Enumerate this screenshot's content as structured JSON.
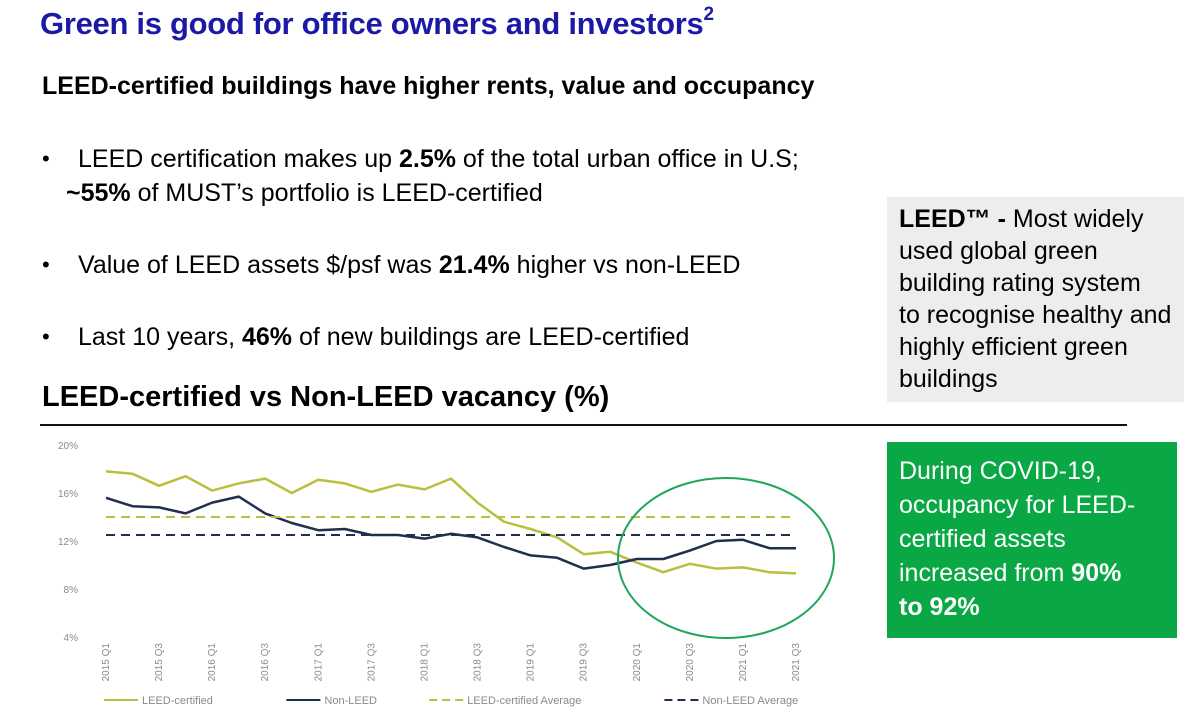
{
  "header": {
    "title": "Green is good for office owners and investors",
    "title_sup": "2",
    "subtitle": "LEED-certified buildings have higher rents, value and occupancy"
  },
  "bullets": [
    {
      "marker": "•",
      "pre": "LEED certification makes up ",
      "bold": "2.5%",
      "post": " of the total urban office in U.S;"
    },
    {
      "pre": "",
      "bold": "~55%",
      "post": " of MUST’s portfolio is LEED-certified"
    },
    {
      "marker": "•",
      "pre": "Value of LEED assets $/psf was ",
      "bold": "21.4%",
      "post": " higher vs non-LEED"
    },
    {
      "marker": "•",
      "pre": "Last 10 years, ",
      "bold": "46%",
      "post": " of new buildings are LEED-certified"
    }
  ],
  "leed_box": {
    "bold": "LEED™ -",
    "lines": [
      " Most widely",
      "used global green",
      "building rating system",
      "to recognise healthy and",
      "highly efficient green",
      "buildings"
    ]
  },
  "chart_heading": "LEED-certified vs Non-LEED vacancy (%)",
  "callout": {
    "lines": [
      "During COVID-19,",
      "occupancy for LEED-",
      "certified assets",
      "increased from "
    ],
    "bold1": "90%",
    "bold2": "to 92%"
  },
  "colors": {
    "title": "#1a1aa6",
    "leed": "#b9bf3e",
    "non_leed": "#1f2f4d",
    "callout_bg": "#0aa845",
    "highlight_circle": "#21a55a"
  },
  "chart_data": {
    "type": "line",
    "ylim": [
      4,
      20
    ],
    "yticks": [
      "4%",
      "8%",
      "12%",
      "16%",
      "20%"
    ],
    "ytick_values": [
      4,
      8,
      12,
      16,
      20
    ],
    "x": [
      "2015 Q1",
      "2015 Q2",
      "2015 Q3",
      "2015 Q4",
      "2016 Q1",
      "2016 Q2",
      "2016 Q3",
      "2016 Q4",
      "2017 Q1",
      "2017 Q2",
      "2017 Q3",
      "2017 Q4",
      "2018 Q1",
      "2018 Q2",
      "2018 Q3",
      "2018 Q4",
      "2019 Q1",
      "2019 Q2",
      "2019 Q3",
      "2019 Q4",
      "2020 Q1",
      "2020 Q2",
      "2020 Q3",
      "2020 Q4",
      "2021 Q1",
      "2021 Q2",
      "2021 Q3"
    ],
    "xtick_labels": [
      "2015 Q1",
      "2015 Q3",
      "2016 Q1",
      "2016 Q3",
      "2017 Q1",
      "2017 Q3",
      "2018 Q1",
      "2018 Q3",
      "2019 Q1",
      "2019 Q3",
      "2020 Q1",
      "2020 Q3",
      "2021 Q1",
      "2021 Q3"
    ],
    "series": [
      {
        "name": "LEED-certified",
        "style": "solid",
        "color": "#b9bf3e",
        "values": [
          17.8,
          17.6,
          16.6,
          17.4,
          16.2,
          16.8,
          17.2,
          16.0,
          17.1,
          16.8,
          16.1,
          16.7,
          16.3,
          17.2,
          15.2,
          13.6,
          13.0,
          12.3,
          10.9,
          11.1,
          10.2,
          9.4,
          10.1,
          9.7,
          9.8,
          9.4,
          9.3
        ]
      },
      {
        "name": "Non-LEED",
        "style": "solid",
        "color": "#1f2f4d",
        "values": [
          15.6,
          14.9,
          14.8,
          14.3,
          15.2,
          15.7,
          14.3,
          13.5,
          12.9,
          13.0,
          12.5,
          12.5,
          12.2,
          12.6,
          12.3,
          11.5,
          10.8,
          10.6,
          9.7,
          10.0,
          10.5,
          10.5,
          11.2,
          12.0,
          12.1,
          11.4,
          11.4
        ]
      },
      {
        "name": "LEED-certified Average",
        "style": "dashed",
        "color": "#b9bf3e",
        "values": [
          14.0,
          14.0,
          14.0,
          14.0,
          14.0,
          14.0,
          14.0,
          14.0,
          14.0,
          14.0,
          14.0,
          14.0,
          14.0,
          14.0,
          14.0,
          14.0,
          14.0,
          14.0,
          14.0,
          14.0,
          14.0,
          14.0,
          14.0,
          14.0,
          14.0,
          14.0,
          14.0
        ]
      },
      {
        "name": "Non-LEED Average",
        "style": "dashed",
        "color": "#1f2f4d",
        "values": [
          12.5,
          12.5,
          12.5,
          12.5,
          12.5,
          12.5,
          12.5,
          12.5,
          12.5,
          12.5,
          12.5,
          12.5,
          12.5,
          12.5,
          12.5,
          12.5,
          12.5,
          12.5,
          12.5,
          12.5,
          12.5,
          12.5,
          12.5,
          12.5,
          12.5,
          12.5,
          12.5
        ]
      }
    ],
    "legend": "bottom",
    "grid": false
  }
}
